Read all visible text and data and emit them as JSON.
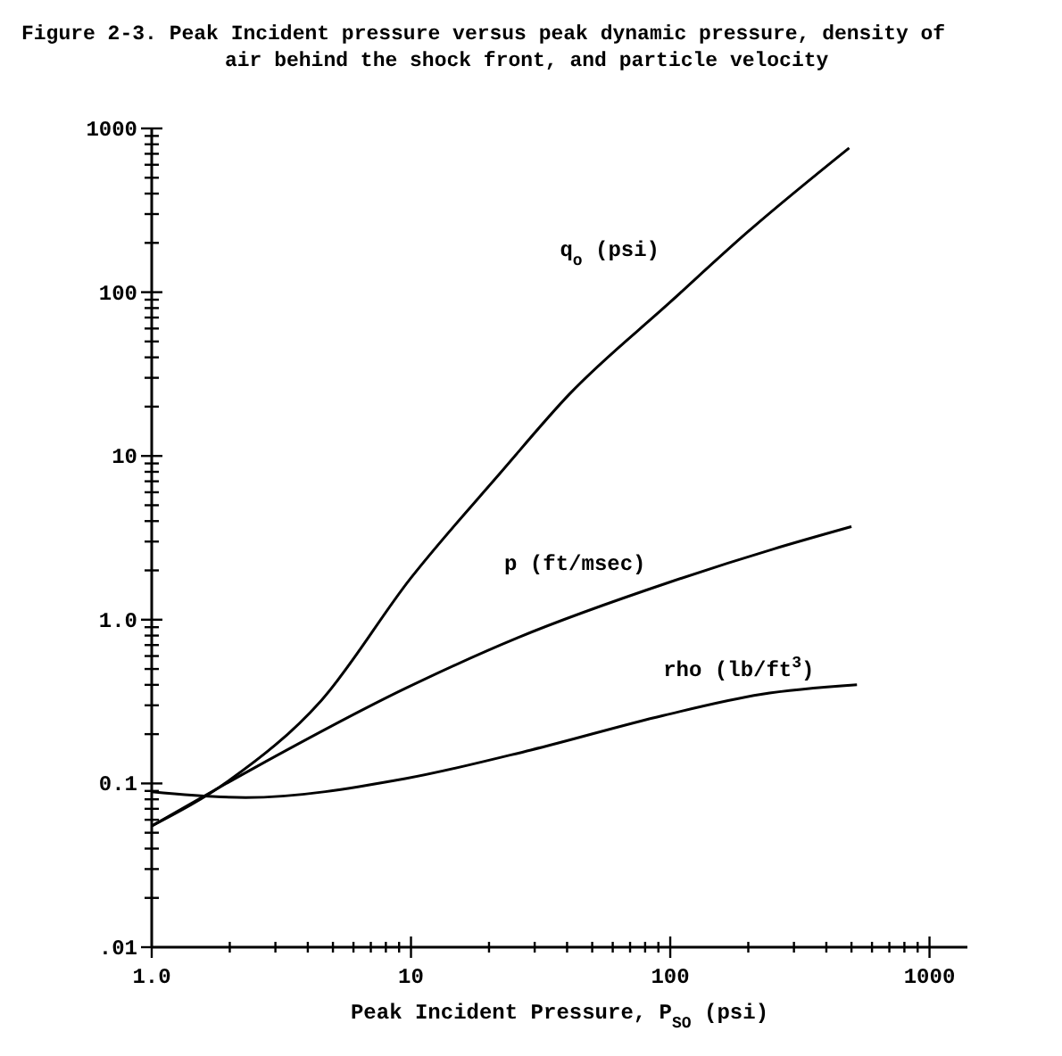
{
  "chart_data": {
    "type": "line",
    "title": "Figure 2-3.  Peak Incident pressure versus peak dynamic pressure, density of air behind the shock front, and particle velocity",
    "xlabel": "Peak Incident Pressure, P$_{SO}$ (psi)",
    "log": "xy",
    "grid": false,
    "marker": "none",
    "line_style": "solid",
    "xlim": [
      1,
      1400
    ],
    "ylim": [
      0.01,
      1000
    ],
    "xticks": [
      {
        "value": 1,
        "label": "1.0"
      },
      {
        "value": 2,
        "label": null
      },
      {
        "value": 3,
        "label": null
      },
      {
        "value": 4,
        "label": null
      },
      {
        "value": 5,
        "label": null
      },
      {
        "value": 6,
        "label": null
      },
      {
        "value": 7,
        "label": null
      },
      {
        "value": 8,
        "label": null
      },
      {
        "value": 9,
        "label": null
      },
      10,
      {
        "value": 20,
        "label": null
      },
      {
        "value": 30,
        "label": null
      },
      {
        "value": 40,
        "label": null
      },
      {
        "value": 50,
        "label": null
      },
      {
        "value": 60,
        "label": null
      },
      {
        "value": 70,
        "label": null
      },
      {
        "value": 80,
        "label": null
      },
      {
        "value": 90,
        "label": null
      },
      100,
      {
        "value": 200,
        "label": null
      },
      {
        "value": 300,
        "label": null
      },
      {
        "value": 400,
        "label": null
      },
      {
        "value": 500,
        "label": null
      },
      {
        "value": 600,
        "label": null
      },
      {
        "value": 700,
        "label": null
      },
      {
        "value": 800,
        "label": null
      },
      {
        "value": 900,
        "label": null
      },
      1000
    ],
    "yticks": [
      {
        "value": 0.01,
        "label": ".01"
      },
      {
        "value": 0.02,
        "label": null
      },
      {
        "value": 0.03,
        "label": null
      },
      {
        "value": 0.04,
        "label": null
      },
      {
        "value": 0.05,
        "label": null
      },
      {
        "value": 0.06,
        "label": null
      },
      {
        "value": 0.07,
        "label": null
      },
      {
        "value": 0.08,
        "label": null
      },
      {
        "value": 0.09,
        "label": null
      },
      0.1,
      {
        "value": 0.2,
        "label": null
      },
      {
        "value": 0.3,
        "label": null
      },
      {
        "value": 0.4,
        "label": null
      },
      {
        "value": 0.5,
        "label": null
      },
      {
        "value": 0.6,
        "label": null
      },
      {
        "value": 0.7,
        "label": null
      },
      {
        "value": 0.8,
        "label": null
      },
      {
        "value": 0.9,
        "label": null
      },
      {
        "value": 1,
        "label": "1.0"
      },
      {
        "value": 2,
        "label": null
      },
      {
        "value": 3,
        "label": null
      },
      {
        "value": 4,
        "label": null
      },
      {
        "value": 5,
        "label": null
      },
      {
        "value": 6,
        "label": null
      },
      {
        "value": 7,
        "label": null
      },
      {
        "value": 8,
        "label": null
      },
      {
        "value": 9,
        "label": null
      },
      10,
      {
        "value": 20,
        "label": null
      },
      {
        "value": 30,
        "label": null
      },
      {
        "value": 40,
        "label": null
      },
      {
        "value": 50,
        "label": null
      },
      {
        "value": 60,
        "label": null
      },
      {
        "value": 70,
        "label": null
      },
      {
        "value": 80,
        "label": null
      },
      {
        "value": 90,
        "label": null
      },
      100,
      {
        "value": 200,
        "label": null
      },
      {
        "value": 300,
        "label": null
      },
      {
        "value": 400,
        "label": null
      },
      {
        "value": 500,
        "label": null
      },
      {
        "value": 600,
        "label": null
      },
      {
        "value": 700,
        "label": null
      },
      {
        "value": 800,
        "label": null
      },
      {
        "value": 900,
        "label": null
      },
      1000
    ],
    "series": [
      {
        "name": "q$_{o}$ (psi)",
        "color": "#000000",
        "x": [
          1,
          2,
          4.5,
          10,
          22,
          41,
          100,
          200,
          490
        ],
        "values": [
          0.055,
          0.105,
          0.32,
          1.8,
          7.8,
          24,
          87,
          235,
          760
        ]
      },
      {
        "name": "p (ft/msec)",
        "color": "#000000",
        "x": [
          1,
          2.5,
          9.5,
          26,
          100,
          250,
          500
        ],
        "values": [
          0.055,
          0.125,
          0.38,
          0.78,
          1.7,
          2.7,
          3.7
        ]
      },
      {
        "name": "rho (lb/ft$^{3}$)",
        "color": "#000000",
        "x": [
          1,
          2.3,
          9.5,
          29,
          94,
          224,
          525
        ],
        "values": [
          0.089,
          0.082,
          0.107,
          0.16,
          0.26,
          0.35,
          0.4
        ]
      }
    ]
  }
}
